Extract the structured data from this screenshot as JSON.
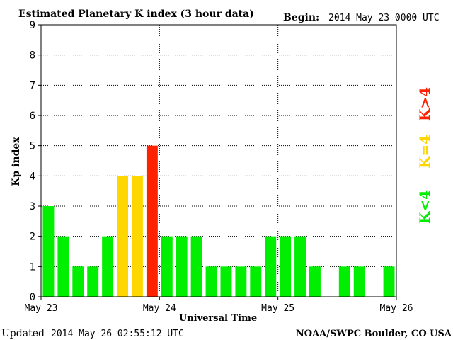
{
  "header": {
    "title": "Estimated Planetary K index (3 hour data)",
    "begin_label": "Begin:",
    "begin_value": "2014 May 23 0000 UTC"
  },
  "footer": {
    "updated_label": "Updated",
    "updated_value": "2014 May 26 02:55:12 UTC",
    "source": "NOAA/SWPC Boulder, CO USA"
  },
  "legend": {
    "items": [
      {
        "label": "K<4",
        "color": "#00ee00"
      },
      {
        "label": "K=4",
        "color": "#ffd700"
      },
      {
        "label": "K>4",
        "color": "#ff2200"
      }
    ],
    "placement": "right"
  },
  "chart_data": {
    "type": "bar",
    "title": "Estimated Planetary K index (3 hour data)",
    "xlabel": "Universal Time",
    "ylabel": "Kp index",
    "ylim": [
      0,
      9
    ],
    "yticks": [
      "0",
      "1",
      "2",
      "3",
      "4",
      "5",
      "6",
      "7",
      "8",
      "9"
    ],
    "xticks": [
      {
        "label": "May 23",
        "slot": 0
      },
      {
        "label": "May 24",
        "slot": 8
      },
      {
        "label": "May 25",
        "slot": 16
      },
      {
        "label": "May 26",
        "slot": 24
      }
    ],
    "slots": 24,
    "grid": true,
    "values": [
      3,
      2,
      1,
      1,
      2,
      4,
      4,
      5,
      2,
      2,
      2,
      1,
      1,
      1,
      1,
      2,
      2,
      2,
      1,
      0,
      1,
      1,
      0,
      1
    ],
    "colors": {
      "below": "#00ee00",
      "equal": "#ffd700",
      "above": "#ff2200"
    }
  }
}
